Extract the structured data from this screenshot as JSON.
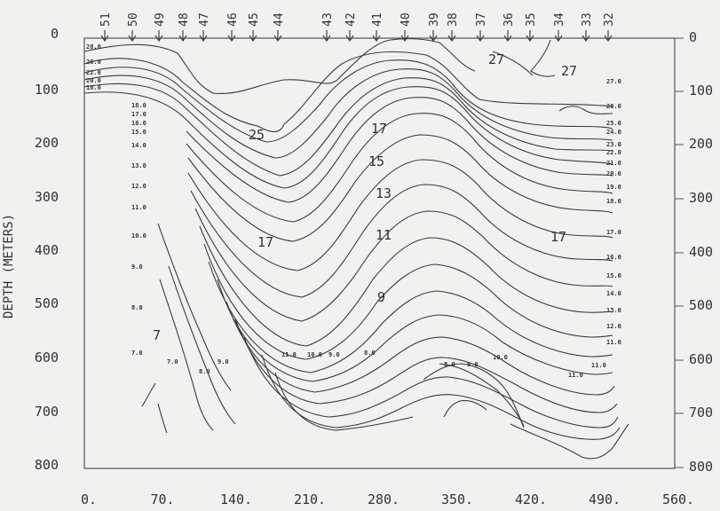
{
  "y_label": "DEPTH (METERS)",
  "y_ticks": [
    "0",
    "100",
    "200",
    "300",
    "400",
    "500",
    "600",
    "700",
    "800"
  ],
  "x_ticks": [
    "0.",
    "70.",
    "140.",
    "210.",
    "280.",
    "350.",
    "420.",
    "490.",
    "560."
  ],
  "stations": [
    "51",
    "50",
    "49",
    "48",
    "47",
    "46",
    "45",
    "44",
    "43",
    "42",
    "41",
    "40",
    "39",
    "38",
    "37",
    "36",
    "35",
    "34",
    "33",
    "32"
  ],
  "big_labels": [
    "27",
    "27",
    "25",
    "17",
    "15",
    "13",
    "11",
    "9",
    "7",
    "17",
    "17"
  ],
  "small_labels": [
    "28.0",
    "26.0",
    "22.0",
    "20.0",
    "18.0",
    "18.0",
    "17.0",
    "16.0",
    "15.0",
    "14.0",
    "13.0",
    "12.0",
    "11.0",
    "10.0",
    "9.0",
    "8.0",
    "7.0",
    "7.0",
    "8.0",
    "9.0",
    "11.0",
    "10.0",
    "9.0",
    "8.0",
    "8.0",
    "9.0",
    "10.0",
    "11.0",
    "27.0",
    "26.0",
    "25.0",
    "24.0",
    "23.0",
    "22.0",
    "21.0",
    "20.0",
    "19.0",
    "18.0",
    "17.0",
    "16.0",
    "15.0",
    "14.0",
    "13.0",
    "12.0",
    "11.0",
    "11.0"
  ],
  "colors": {
    "background": "#f1f1f0",
    "ink": "#333333"
  }
}
